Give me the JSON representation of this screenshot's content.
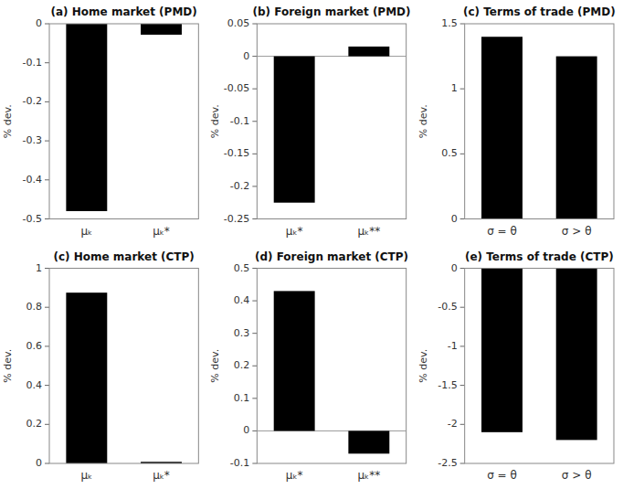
{
  "chart_data": [
    {
      "type": "bar",
      "title": "(a) Home market (PMD)",
      "ylabel": "% dev.",
      "categories": [
        "μₖ",
        "μₖ*"
      ],
      "values": [
        -0.48,
        -0.028
      ],
      "color": "#000000",
      "ylim": [
        -0.5,
        0
      ],
      "yticks": [
        0,
        -0.1,
        -0.2,
        -0.3,
        -0.4,
        -0.5
      ],
      "grid": false
    },
    {
      "type": "bar",
      "title": "(b) Foreign market (PMD)",
      "ylabel": "% dev.",
      "categories": [
        "μₖ*",
        "μₖ**"
      ],
      "values": [
        -0.225,
        0.015
      ],
      "color": "#000000",
      "ylim": [
        -0.25,
        0.05
      ],
      "yticks": [
        0.05,
        0,
        -0.05,
        -0.1,
        -0.15,
        -0.2,
        -0.25
      ],
      "hline": 0,
      "grid": false
    },
    {
      "type": "bar",
      "title": "(c) Terms of trade (PMD)",
      "ylabel": "% dev.",
      "categories": [
        "σ = θ",
        "σ > θ"
      ],
      "values": [
        1.4,
        1.25
      ],
      "color": "#000000",
      "ylim": [
        0,
        1.5
      ],
      "yticks": [
        0,
        0.5,
        1,
        1.5
      ],
      "grid": false
    },
    {
      "type": "bar",
      "title": "(c) Home market (CTP)",
      "ylabel": "% dev.",
      "categories": [
        "μₖ",
        "μₖ*"
      ],
      "values": [
        0.875,
        0.008
      ],
      "color": "#000000",
      "ylim": [
        0,
        1
      ],
      "yticks": [
        0,
        0.2,
        0.4,
        0.6,
        0.8,
        1
      ],
      "grid": false
    },
    {
      "type": "bar",
      "title": "(d) Foreign market (CTP)",
      "ylabel": "% dev.",
      "categories": [
        "μₖ*",
        "μₖ**"
      ],
      "values": [
        0.43,
        -0.07
      ],
      "color": "#000000",
      "ylim": [
        -0.1,
        0.5
      ],
      "yticks": [
        -0.1,
        0,
        0.1,
        0.2,
        0.3,
        0.4,
        0.5
      ],
      "hline": 0,
      "grid": false
    },
    {
      "type": "bar",
      "title": "(e) Terms of trade (CTP)",
      "ylabel": "% dev.",
      "categories": [
        "σ = θ",
        "σ > θ"
      ],
      "values": [
        -2.1,
        -2.2
      ],
      "color": "#000000",
      "ylim": [
        -2.5,
        0
      ],
      "yticks": [
        0,
        -0.5,
        -1,
        -1.5,
        -2,
        -2.5
      ],
      "grid": false
    }
  ]
}
